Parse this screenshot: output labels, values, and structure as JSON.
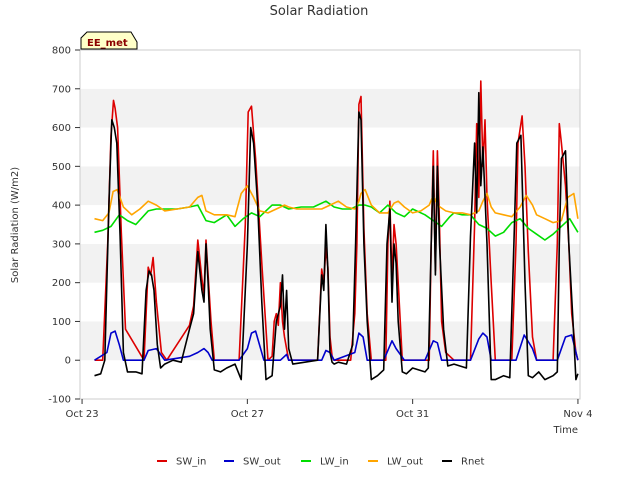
{
  "chart_data": {
    "type": "line",
    "title": "Solar Radiation",
    "xlabel": "Time",
    "ylabel": "Solar Radiation (W/m2)",
    "badge": "EE_met",
    "ylim": [
      -100,
      800
    ],
    "xlim": [
      -0.05,
      12.05
    ],
    "yticks": [
      -100,
      0,
      100,
      200,
      300,
      400,
      500,
      600,
      700,
      800
    ],
    "xticks": [
      {
        "pos": 0,
        "label": "Oct 23"
      },
      {
        "pos": 4,
        "label": "Oct 27"
      },
      {
        "pos": 8,
        "label": "Oct 31"
      },
      {
        "pos": 12,
        "label": "Nov 4"
      }
    ],
    "grid": true,
    "legend_position": "bottom",
    "series": [
      {
        "name": "SW_in",
        "color": "#dd0000",
        "x": [
          0.3,
          0.5,
          0.62,
          0.7,
          0.76,
          0.8,
          0.86,
          0.95,
          1.05,
          1.5,
          1.6,
          1.66,
          1.72,
          1.8,
          1.92,
          2.05,
          2.6,
          2.7,
          2.8,
          2.9,
          2.95,
          3.0,
          3.05,
          3.12,
          3.2,
          3.4,
          3.6,
          3.8,
          3.95,
          4.02,
          4.1,
          4.2,
          4.35,
          4.5,
          4.6,
          4.65,
          4.7,
          4.75,
          4.8,
          4.85,
          4.9,
          5.0,
          5.7,
          5.8,
          5.85,
          5.9,
          5.95,
          6.0,
          6.05,
          6.1,
          6.3,
          6.5,
          6.6,
          6.65,
          6.7,
          6.75,
          6.82,
          6.9,
          7.0,
          7.2,
          7.35,
          7.4,
          7.45,
          7.5,
          7.55,
          7.6,
          7.65,
          7.75,
          8.3,
          8.4,
          8.45,
          8.5,
          8.55,
          8.6,
          8.65,
          8.7,
          8.8,
          9.0,
          9.4,
          9.5,
          9.55,
          9.6,
          9.65,
          9.7,
          9.75,
          9.8,
          9.9,
          10.0,
          10.4,
          10.5,
          10.55,
          10.65,
          10.72,
          10.8,
          10.9,
          11.0,
          11.1,
          11.2,
          11.3,
          11.4,
          11.5,
          11.55,
          11.6,
          11.7,
          11.78,
          11.85,
          11.95,
          12.0
        ],
        "values": [
          0,
          0,
          300,
          580,
          670,
          650,
          600,
          330,
          80,
          0,
          240,
          220,
          265,
          150,
          20,
          0,
          90,
          140,
          310,
          210,
          170,
          310,
          220,
          100,
          0,
          0,
          0,
          0,
          350,
          640,
          655,
          520,
          250,
          0,
          10,
          100,
          120,
          90,
          200,
          100,
          60,
          0,
          0,
          235,
          200,
          290,
          240,
          60,
          10,
          0,
          0,
          0,
          120,
          300,
          660,
          680,
          340,
          120,
          0,
          0,
          0,
          300,
          410,
          200,
          350,
          300,
          200,
          0,
          0,
          0,
          300,
          540,
          230,
          540,
          350,
          100,
          20,
          0,
          0,
          350,
          610,
          420,
          720,
          500,
          620,
          420,
          200,
          0,
          0,
          300,
          560,
          630,
          500,
          280,
          60,
          0,
          0,
          0,
          0,
          0,
          300,
          610,
          560,
          450,
          300,
          120,
          20,
          0
        ]
      },
      {
        "name": "SW_out",
        "color": "#0000cc",
        "x": [
          0.3,
          0.6,
          0.7,
          0.8,
          0.9,
          1.0,
          1.5,
          1.6,
          1.8,
          2.0,
          2.6,
          2.8,
          2.95,
          3.05,
          3.15,
          3.8,
          4.0,
          4.1,
          4.2,
          4.4,
          4.8,
          4.95,
          5.0,
          5.8,
          5.9,
          6.0,
          6.1,
          6.6,
          6.7,
          6.8,
          6.9,
          7.3,
          7.5,
          7.6,
          7.8,
          8.3,
          8.5,
          8.6,
          8.7,
          8.9,
          9.4,
          9.6,
          9.7,
          9.8,
          9.9,
          10.5,
          10.7,
          10.9,
          11.0,
          11.5,
          11.7,
          11.85,
          12.0
        ],
        "values": [
          0,
          20,
          70,
          75,
          40,
          0,
          0,
          25,
          30,
          0,
          10,
          20,
          30,
          20,
          0,
          0,
          30,
          70,
          75,
          0,
          0,
          15,
          0,
          0,
          25,
          20,
          0,
          20,
          70,
          60,
          0,
          0,
          50,
          30,
          0,
          0,
          50,
          45,
          0,
          0,
          0,
          55,
          70,
          60,
          0,
          0,
          65,
          30,
          0,
          0,
          60,
          65,
          0
        ]
      },
      {
        "name": "LW_in",
        "color": "#00dd00",
        "x": [
          0.3,
          0.5,
          0.7,
          0.9,
          1.1,
          1.3,
          1.6,
          1.8,
          2.0,
          2.3,
          2.6,
          2.8,
          3.0,
          3.2,
          3.5,
          3.7,
          3.9,
          4.1,
          4.3,
          4.6,
          4.8,
          5.0,
          5.3,
          5.6,
          5.9,
          6.1,
          6.3,
          6.5,
          6.7,
          6.85,
          7.0,
          7.2,
          7.4,
          7.6,
          7.8,
          8.0,
          8.3,
          8.5,
          8.7,
          8.9,
          9.0,
          9.2,
          9.4,
          9.6,
          9.8,
          10.0,
          10.2,
          10.4,
          10.6,
          10.8,
          11.0,
          11.2,
          11.4,
          11.6,
          11.8,
          12.0
        ],
        "values": [
          330,
          335,
          345,
          375,
          360,
          350,
          385,
          390,
          390,
          390,
          395,
          400,
          360,
          355,
          375,
          345,
          365,
          380,
          370,
          400,
          400,
          390,
          395,
          395,
          410,
          395,
          390,
          390,
          400,
          400,
          395,
          380,
          400,
          380,
          370,
          390,
          375,
          360,
          345,
          370,
          380,
          375,
          375,
          350,
          340,
          320,
          330,
          355,
          365,
          340,
          325,
          310,
          325,
          345,
          365,
          330
        ]
      },
      {
        "name": "LW_out",
        "color": "#ffa500",
        "x": [
          0.3,
          0.5,
          0.65,
          0.75,
          0.85,
          1.0,
          1.2,
          1.4,
          1.6,
          1.8,
          2.0,
          2.3,
          2.6,
          2.8,
          2.9,
          3.0,
          3.2,
          3.5,
          3.7,
          3.85,
          4.0,
          4.15,
          4.3,
          4.5,
          4.7,
          4.9,
          5.0,
          5.2,
          5.5,
          5.8,
          6.0,
          6.2,
          6.4,
          6.6,
          6.7,
          6.75,
          6.85,
          7.0,
          7.2,
          7.4,
          7.55,
          7.65,
          7.8,
          8.0,
          8.2,
          8.4,
          8.5,
          8.6,
          8.8,
          9.0,
          9.2,
          9.4,
          9.6,
          9.7,
          9.8,
          9.9,
          10.0,
          10.2,
          10.4,
          10.6,
          10.75,
          10.9,
          11.0,
          11.2,
          11.4,
          11.6,
          11.75,
          11.9,
          12.0
        ],
        "values": [
          365,
          360,
          380,
          435,
          440,
          395,
          375,
          390,
          410,
          400,
          385,
          390,
          395,
          420,
          425,
          385,
          375,
          375,
          370,
          430,
          450,
          420,
          385,
          380,
          390,
          400,
          395,
          390,
          390,
          390,
          400,
          410,
          395,
          390,
          410,
          430,
          440,
          400,
          380,
          380,
          405,
          410,
          395,
          380,
          385,
          400,
          425,
          400,
          385,
          380,
          380,
          375,
          385,
          410,
          430,
          395,
          380,
          375,
          370,
          395,
          425,
          400,
          375,
          365,
          355,
          360,
          420,
          430,
          365
        ]
      },
      {
        "name": "Rnet",
        "color": "#000000",
        "x": [
          0.3,
          0.45,
          0.55,
          0.65,
          0.72,
          0.78,
          0.84,
          0.92,
          1.0,
          1.1,
          1.3,
          1.45,
          1.55,
          1.62,
          1.68,
          1.74,
          1.82,
          1.9,
          2.0,
          2.2,
          2.4,
          2.6,
          2.7,
          2.8,
          2.9,
          2.95,
          3.0,
          3.05,
          3.1,
          3.2,
          3.35,
          3.5,
          3.7,
          3.85,
          4.0,
          4.08,
          4.15,
          4.25,
          4.35,
          4.45,
          4.6,
          4.7,
          4.8,
          4.85,
          4.9,
          4.95,
          5.0,
          5.1,
          5.7,
          5.8,
          5.85,
          5.9,
          5.95,
          6.0,
          6.05,
          6.1,
          6.2,
          6.4,
          6.55,
          6.62,
          6.7,
          6.75,
          6.82,
          6.9,
          7.0,
          7.15,
          7.3,
          7.38,
          7.45,
          7.5,
          7.55,
          7.6,
          7.65,
          7.75,
          7.85,
          8.0,
          8.3,
          8.38,
          8.45,
          8.5,
          8.55,
          8.6,
          8.65,
          8.75,
          8.85,
          9.0,
          9.3,
          9.4,
          9.5,
          9.55,
          9.6,
          9.65,
          9.7,
          9.8,
          9.9,
          10.0,
          10.2,
          10.35,
          10.45,
          10.52,
          10.62,
          10.72,
          10.8,
          10.9,
          11.05,
          11.2,
          11.4,
          11.5,
          11.55,
          11.6,
          11.7,
          11.78,
          11.88,
          11.95,
          12.0
        ],
        "values": [
          -40,
          -35,
          0,
          400,
          620,
          600,
          560,
          320,
          20,
          -30,
          -30,
          -35,
          180,
          230,
          220,
          180,
          40,
          -20,
          -10,
          0,
          -5,
          80,
          120,
          280,
          180,
          150,
          300,
          200,
          80,
          -25,
          -30,
          -20,
          -10,
          -50,
          300,
          600,
          560,
          400,
          150,
          -50,
          -40,
          100,
          140,
          220,
          80,
          180,
          30,
          -10,
          0,
          220,
          180,
          350,
          230,
          20,
          -5,
          -10,
          -5,
          -10,
          40,
          300,
          640,
          620,
          300,
          100,
          -50,
          -40,
          -25,
          300,
          390,
          150,
          300,
          250,
          100,
          -30,
          -35,
          -20,
          -30,
          -20,
          300,
          500,
          220,
          500,
          300,
          80,
          -15,
          -10,
          -20,
          320,
          560,
          380,
          690,
          450,
          550,
          300,
          -50,
          -50,
          -40,
          -45,
          300,
          560,
          580,
          200,
          -40,
          -45,
          -30,
          -50,
          -40,
          -30,
          300,
          520,
          540,
          300,
          100,
          -50,
          -35
        ]
      }
    ]
  }
}
